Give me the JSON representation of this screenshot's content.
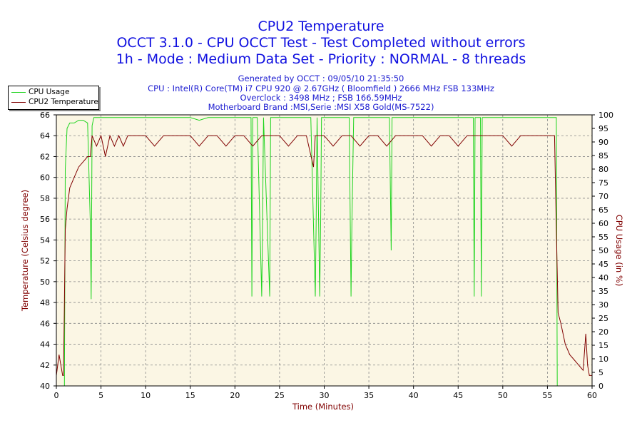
{
  "header": {
    "title": "CPU2 Temperature",
    "subtitle1": "OCCT 3.1.0 - CPU OCCT Test - Test Completed without errors",
    "subtitle2": "1h - Mode : Medium Data Set - Priority : NORMAL - 8 threads",
    "info": [
      "Generated by OCCT : 09/05/10 21:35:50",
      "CPU : Intel(R) Core(TM) i7 CPU 920 @ 2.67GHz ( Bloomfield ) 2666 MHz FSB 133MHz",
      "Overclock : 3498 MHz ; FSB 166.59MHz",
      "Motherboard Brand :MSI,Serie :MSI X58 Gold(MS-7522)"
    ]
  },
  "colors": {
    "temperature": "#800000",
    "usage": "#1fd41f",
    "plot_background": "#fbf6e4",
    "axis_text_left": "#800000",
    "axis_text_right": "#800000"
  },
  "chart_data": {
    "type": "line",
    "title": "CPU2 Temperature",
    "xlabel": "Time (Minutes)",
    "ylabel_left": "Temperature (Celsius degree)",
    "ylabel_right": "CPU Usage (in %)",
    "xlim": [
      0,
      60
    ],
    "ylim_left": [
      40,
      66
    ],
    "ylim_right": [
      0,
      100
    ],
    "x_ticks": [
      0,
      5,
      10,
      15,
      20,
      25,
      30,
      35,
      40,
      45,
      50,
      55,
      60
    ],
    "y_left_ticks": [
      40,
      42,
      44,
      46,
      48,
      50,
      52,
      54,
      56,
      58,
      60,
      62,
      64,
      66
    ],
    "y_right_ticks": [
      0,
      5,
      10,
      15,
      20,
      25,
      30,
      35,
      40,
      45,
      50,
      55,
      60,
      65,
      70,
      75,
      80,
      85,
      90,
      95,
      100
    ],
    "grid": true,
    "legend": "top-left",
    "series": [
      {
        "name": "CPU Usage",
        "axis": "right",
        "x": [
          0,
          0.9,
          1.0,
          1.2,
          1.5,
          2,
          2.5,
          3,
          3.5,
          3.8,
          3.9,
          4.0,
          4.2,
          5,
          6,
          7,
          8,
          10,
          12,
          14,
          15,
          16,
          17,
          18,
          19,
          20,
          21,
          21.8,
          21.9,
          22.0,
          22.5,
          23.0,
          23.1,
          23.2,
          23.9,
          24.0,
          24.1,
          25,
          27,
          28.5,
          29.0,
          29.1,
          29.2,
          29.5,
          29.6,
          29.7,
          30,
          31,
          32.8,
          33.0,
          33.1,
          33.3,
          35,
          37.3,
          37.5,
          37.6,
          37.8,
          40,
          42,
          44,
          46.7,
          46.8,
          46.9,
          47.5,
          47.6,
          47.7,
          48.5,
          50,
          52,
          54,
          55.5,
          55.9,
          56.0,
          56.1,
          60
        ],
        "values": [
          0,
          0,
          80,
          95,
          97,
          97,
          98,
          98,
          97,
          60,
          32,
          96,
          99,
          99,
          99,
          99,
          99,
          99,
          99,
          99,
          99,
          98,
          99,
          99,
          99,
          99,
          99,
          99,
          33,
          99,
          99,
          33,
          60,
          99,
          33,
          99,
          99,
          99,
          99,
          99,
          33,
          60,
          99,
          33,
          60,
          99,
          99,
          99,
          99,
          33,
          60,
          99,
          99,
          99,
          50,
          99,
          99,
          99,
          99,
          99,
          99,
          33,
          99,
          99,
          33,
          99,
          99,
          99,
          99,
          99,
          99,
          99,
          99,
          0,
          0
        ]
      },
      {
        "name": "CPU2 Temperature",
        "axis": "left",
        "x": [
          0,
          0.3,
          0.5,
          0.7,
          0.8,
          0.9,
          1.0,
          1.2,
          1.5,
          2,
          2.5,
          3,
          3.5,
          3.8,
          4.0,
          4.5,
          5,
          5.5,
          6,
          6.5,
          7,
          7.5,
          8,
          9,
          10,
          11,
          12,
          13,
          14,
          15,
          16,
          17,
          18,
          19,
          20,
          21,
          22,
          23,
          24,
          25,
          26,
          27,
          28,
          28.8,
          29,
          30,
          31,
          32,
          33,
          34,
          35,
          36,
          37,
          38,
          39,
          40,
          41,
          42,
          43,
          44,
          45,
          46,
          47,
          48,
          49,
          50,
          51,
          52,
          53,
          54,
          55,
          55.8,
          56.0,
          56.2,
          56.5,
          57,
          57.5,
          58,
          58.5,
          59,
          59.3,
          59.5,
          59.7,
          60
        ],
        "values": [
          41,
          43,
          42,
          41,
          41,
          48,
          55,
          57,
          59,
          60,
          61,
          61.5,
          62,
          62,
          64,
          63,
          64,
          62,
          64,
          63,
          64,
          63,
          64,
          64,
          64,
          63,
          64,
          64,
          64,
          64,
          63,
          64,
          64,
          63,
          64,
          64,
          63,
          64,
          64,
          64,
          63,
          64,
          64,
          61,
          64,
          64,
          63,
          64,
          64,
          63,
          64,
          64,
          63,
          64,
          64,
          64,
          64,
          63,
          64,
          64,
          63,
          64,
          64,
          64,
          64,
          64,
          63,
          64,
          64,
          64,
          64,
          64,
          55,
          47,
          46,
          44,
          43,
          42.5,
          42,
          41.5,
          45,
          42,
          41,
          41
        ]
      }
    ]
  }
}
